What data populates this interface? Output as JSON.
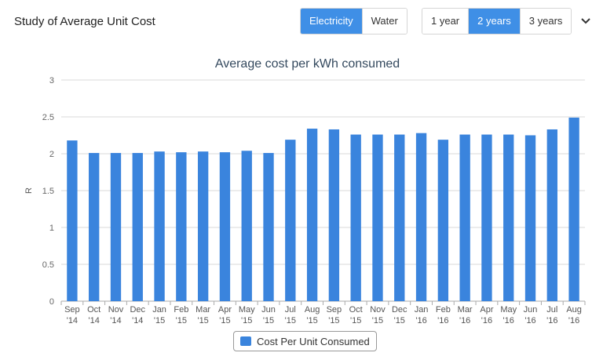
{
  "header": {
    "title": "Study of Average Unit Cost",
    "utility_tabs": [
      {
        "label": "Electricity",
        "active": true
      },
      {
        "label": "Water",
        "active": false
      }
    ],
    "period_tabs": [
      {
        "label": "1 year",
        "active": false
      },
      {
        "label": "2 years",
        "active": true
      },
      {
        "label": "3 years",
        "active": false
      }
    ],
    "menu_icon": "chevron-down-icon"
  },
  "colors": {
    "accent": "#3f8fe6",
    "bar": "#3a84dd",
    "title": "#34495e"
  },
  "chart_data": {
    "type": "bar",
    "title": "Average cost per kWh consumed",
    "xlabel": "",
    "ylabel": "R",
    "ylim": [
      0,
      3
    ],
    "yticks": [
      0,
      0.5,
      1,
      1.5,
      2,
      2.5,
      3
    ],
    "grid": true,
    "legend_position": "bottom-center",
    "categories": [
      [
        "Sep",
        "'14"
      ],
      [
        "Oct",
        "'14"
      ],
      [
        "Nov",
        "'14"
      ],
      [
        "Dec",
        "'14"
      ],
      [
        "Jan",
        "'15"
      ],
      [
        "Feb",
        "'15"
      ],
      [
        "Mar",
        "'15"
      ],
      [
        "Apr",
        "'15"
      ],
      [
        "May",
        "'15"
      ],
      [
        "Jun",
        "'15"
      ],
      [
        "Jul",
        "'15"
      ],
      [
        "Aug",
        "'15"
      ],
      [
        "Sep",
        "'15"
      ],
      [
        "Oct",
        "'15"
      ],
      [
        "Nov",
        "'15"
      ],
      [
        "Dec",
        "'15"
      ],
      [
        "Jan",
        "'16"
      ],
      [
        "Feb",
        "'16"
      ],
      [
        "Mar",
        "'16"
      ],
      [
        "Apr",
        "'16"
      ],
      [
        "May",
        "'16"
      ],
      [
        "Jun",
        "'16"
      ],
      [
        "Jul",
        "'16"
      ],
      [
        "Aug",
        "'16"
      ]
    ],
    "series": [
      {
        "name": "Cost Per Unit Consumed",
        "values": [
          2.18,
          2.01,
          2.01,
          2.01,
          2.03,
          2.02,
          2.03,
          2.02,
          2.04,
          2.01,
          2.19,
          2.34,
          2.33,
          2.26,
          2.26,
          2.26,
          2.28,
          2.19,
          2.26,
          2.26,
          2.26,
          2.25,
          2.33,
          2.49
        ]
      }
    ]
  }
}
